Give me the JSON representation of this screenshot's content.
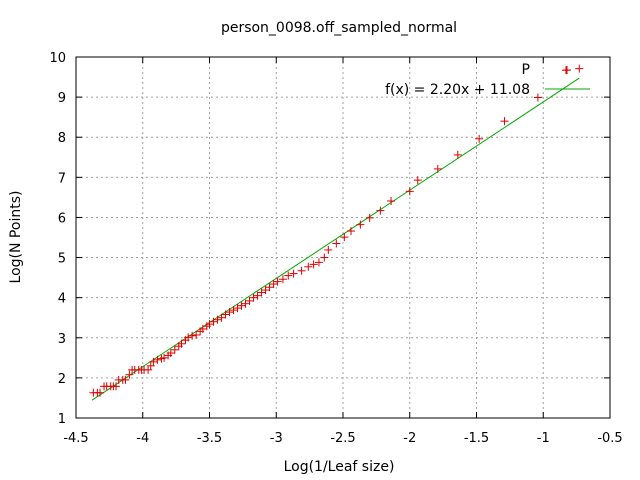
{
  "chart_data": {
    "type": "scatter",
    "title": "person_0098.off_sampled_normal",
    "xlabel": "Log(1/Leaf size)",
    "ylabel": "Log(N Points)",
    "xlim": [
      -4.5,
      -0.5
    ],
    "ylim": [
      1,
      10
    ],
    "grid": true,
    "legend_position": "top-right",
    "x_ticks": [
      "-4.5",
      "-4",
      "-3.5",
      "-3",
      "-2.5",
      "-2",
      "-1.5",
      "-1",
      "-0.5"
    ],
    "y_ticks": [
      "1",
      "2",
      "3",
      "4",
      "5",
      "6",
      "7",
      "8",
      "9",
      "10"
    ],
    "series": [
      {
        "name": "P",
        "kind": "points",
        "color": "#dd0000",
        "points": [
          [
            -4.37,
            1.63
          ],
          [
            -4.34,
            1.63
          ],
          [
            -4.32,
            1.63
          ],
          [
            -4.29,
            1.79
          ],
          [
            -4.27,
            1.79
          ],
          [
            -4.24,
            1.79
          ],
          [
            -4.22,
            1.79
          ],
          [
            -4.2,
            1.79
          ],
          [
            -4.18,
            1.95
          ],
          [
            -4.15,
            1.95
          ],
          [
            -4.13,
            1.95
          ],
          [
            -4.1,
            2.08
          ],
          [
            -4.08,
            2.2
          ],
          [
            -4.06,
            2.2
          ],
          [
            -4.03,
            2.2
          ],
          [
            -4.01,
            2.2
          ],
          [
            -3.99,
            2.2
          ],
          [
            -3.96,
            2.2
          ],
          [
            -3.94,
            2.3
          ],
          [
            -3.92,
            2.4
          ],
          [
            -3.89,
            2.45
          ],
          [
            -3.86,
            2.48
          ],
          [
            -3.84,
            2.5
          ],
          [
            -3.81,
            2.56
          ],
          [
            -3.79,
            2.62
          ],
          [
            -3.76,
            2.7
          ],
          [
            -3.73,
            2.79
          ],
          [
            -3.71,
            2.85
          ],
          [
            -3.68,
            2.94
          ],
          [
            -3.66,
            3.01
          ],
          [
            -3.63,
            3.05
          ],
          [
            -3.6,
            3.07
          ],
          [
            -3.57,
            3.16
          ],
          [
            -3.55,
            3.22
          ],
          [
            -3.52,
            3.29
          ],
          [
            -3.5,
            3.34
          ],
          [
            -3.47,
            3.4
          ],
          [
            -3.44,
            3.45
          ],
          [
            -3.41,
            3.5
          ],
          [
            -3.38,
            3.58
          ],
          [
            -3.35,
            3.64
          ],
          [
            -3.32,
            3.69
          ],
          [
            -3.29,
            3.74
          ],
          [
            -3.26,
            3.8
          ],
          [
            -3.23,
            3.85
          ],
          [
            -3.2,
            3.92
          ],
          [
            -3.17,
            4.0
          ],
          [
            -3.14,
            4.05
          ],
          [
            -3.11,
            4.13
          ],
          [
            -3.08,
            4.19
          ],
          [
            -3.05,
            4.26
          ],
          [
            -3.02,
            4.34
          ],
          [
            -2.99,
            4.4
          ],
          [
            -2.95,
            4.46
          ],
          [
            -2.91,
            4.55
          ],
          [
            -2.87,
            4.6
          ],
          [
            -2.81,
            4.67
          ],
          [
            -2.76,
            4.77
          ],
          [
            -2.72,
            4.83
          ],
          [
            -2.68,
            4.88
          ],
          [
            -2.64,
            5.0
          ],
          [
            -2.61,
            5.19
          ],
          [
            -2.55,
            5.35
          ],
          [
            -2.49,
            5.51
          ],
          [
            -2.44,
            5.66
          ],
          [
            -2.37,
            5.82
          ],
          [
            -2.3,
            5.99
          ],
          [
            -2.22,
            6.17
          ],
          [
            -2.14,
            6.41
          ],
          [
            -2.0,
            6.65
          ],
          [
            -1.94,
            6.93
          ],
          [
            -1.79,
            7.21
          ],
          [
            -1.64,
            7.56
          ],
          [
            -1.48,
            7.96
          ],
          [
            -1.29,
            8.4
          ],
          [
            -1.04,
            8.99
          ],
          [
            -0.83,
            9.67
          ],
          [
            -0.73,
            9.71
          ]
        ]
      },
      {
        "name": "f(x) = 2.20x + 11.08",
        "kind": "line",
        "color": "#00aa00",
        "slope": 2.2,
        "intercept": 11.08,
        "x_range": [
          -4.38,
          -0.73
        ]
      }
    ]
  }
}
